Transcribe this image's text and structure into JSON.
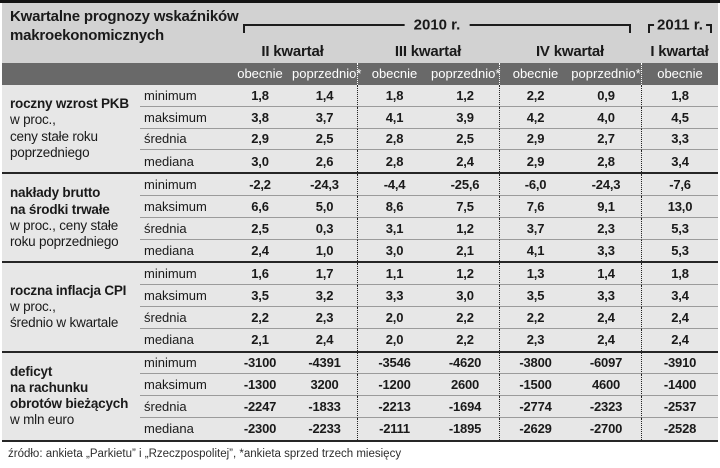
{
  "chart_data": {
    "type": "table",
    "title": "Kwartalne prognozy wskaźników\nmakroekonomicznych",
    "years": [
      "2010 r.",
      "2011 r."
    ],
    "quarters": [
      "II kwartał",
      "III kwartał",
      "IV kwartał",
      "I kwartał"
    ],
    "subheaders": [
      "obecnie",
      "poprzednio*",
      "obecnie",
      "poprzednio*",
      "obecnie",
      "poprzednio*",
      "obecnie"
    ],
    "row_groups": [
      {
        "label_bold": "roczny wzrost PKB",
        "label_rest": "w proc.,\nceny stałe roku\npoprzedniego",
        "rows": [
          {
            "metric": "minimum",
            "values": [
              "1,8",
              "1,4",
              "1,8",
              "1,2",
              "2,2",
              "0,9",
              "1,8"
            ]
          },
          {
            "metric": "maksimum",
            "values": [
              "3,8",
              "3,7",
              "4,1",
              "3,9",
              "4,2",
              "4,0",
              "4,5"
            ]
          },
          {
            "metric": "średnia",
            "values": [
              "2,9",
              "2,5",
              "2,8",
              "2,5",
              "2,9",
              "2,7",
              "3,3"
            ]
          },
          {
            "metric": "mediana",
            "values": [
              "3,0",
              "2,6",
              "2,8",
              "2,4",
              "2,9",
              "2,8",
              "3,4"
            ]
          }
        ]
      },
      {
        "label_bold": "nakłady brutto\nna środki trwałe",
        "label_rest": "w proc., ceny stałe\nroku poprzedniego",
        "rows": [
          {
            "metric": "minimum",
            "values": [
              "-2,2",
              "-24,3",
              "-4,4",
              "-25,6",
              "-6,0",
              "-24,3",
              "-7,6"
            ]
          },
          {
            "metric": "maksimum",
            "values": [
              "6,6",
              "5,0",
              "8,6",
              "7,5",
              "7,6",
              "9,1",
              "13,0"
            ]
          },
          {
            "metric": "średnia",
            "values": [
              "2,5",
              "0,3",
              "3,1",
              "1,2",
              "3,7",
              "2,3",
              "5,3"
            ]
          },
          {
            "metric": "mediana",
            "values": [
              "2,4",
              "1,0",
              "3,0",
              "2,1",
              "4,1",
              "3,3",
              "5,3"
            ]
          }
        ]
      },
      {
        "label_bold": "roczna inflacja CPI",
        "label_rest": "w proc.,\nśrednio w kwartale",
        "rows": [
          {
            "metric": "minimum",
            "values": [
              "1,6",
              "1,7",
              "1,1",
              "1,2",
              "1,3",
              "1,4",
              "1,8"
            ]
          },
          {
            "metric": "maksimum",
            "values": [
              "3,5",
              "3,2",
              "3,3",
              "3,0",
              "3,5",
              "3,3",
              "3,4"
            ]
          },
          {
            "metric": "średnia",
            "values": [
              "2,2",
              "2,3",
              "2,0",
              "2,2",
              "2,2",
              "2,4",
              "2,4"
            ]
          },
          {
            "metric": "mediana",
            "values": [
              "2,1",
              "2,4",
              "2,0",
              "2,2",
              "2,3",
              "2,4",
              "2,4"
            ]
          }
        ]
      },
      {
        "label_bold": "deficyt\nna rachunku\nobrotów bieżących",
        "label_rest": "w mln euro",
        "rows": [
          {
            "metric": "minimum",
            "values": [
              "-3100",
              "-4391",
              "-3546",
              "-4620",
              "-3800",
              "-6097",
              "-3910"
            ]
          },
          {
            "metric": "maksimum",
            "values": [
              "-1300",
              "3200",
              "-1200",
              "2600",
              "-1500",
              "4600",
              "-1400"
            ]
          },
          {
            "metric": "średnia",
            "values": [
              "-2247",
              "-1833",
              "-2213",
              "-1694",
              "-2774",
              "-2323",
              "-2537"
            ]
          },
          {
            "metric": "mediana",
            "values": [
              "-2300",
              "-2233",
              "-2111",
              "-1895",
              "-2629",
              "-2700",
              "-2528"
            ]
          }
        ]
      }
    ],
    "footnote": "źródło: ankieta „Parkietu” i „Rzeczpospolitej”, *ankieta sprzed trzech miesięcy",
    "layout": {
      "grid": "on",
      "column_group_separators": "dotted",
      "value_columns_per_quarter": [
        "obecnie",
        "poprzednio*"
      ]
    },
    "colors": {
      "header_band": "#d2d2d2",
      "subheader_band": "#696969",
      "body_background": "#e7e7e7",
      "row_separator": "#9b9b9b",
      "group_separator": "#262626",
      "text": "#1a1a1a",
      "subheader_text": "#ffffff"
    }
  }
}
